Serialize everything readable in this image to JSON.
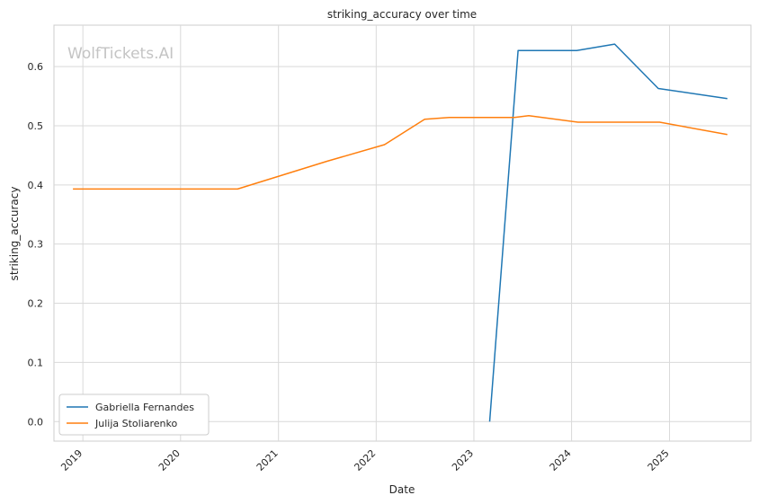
{
  "chart_data": {
    "type": "line",
    "title": "striking_accuracy over time",
    "xlabel": "Date",
    "ylabel": "striking_accuracy",
    "watermark": "WolfTickets.AI",
    "x_ticks": [
      "2019",
      "2020",
      "2021",
      "2022",
      "2023",
      "2024",
      "2025"
    ],
    "y_ticks": [
      "0.0",
      "0.1",
      "0.2",
      "0.3",
      "0.4",
      "0.5",
      "0.6"
    ],
    "xlim": [
      "2018-09-15",
      "2025-11-01"
    ],
    "ylim": [
      -0.033,
      0.67
    ],
    "grid": true,
    "legend_position": "lower-left",
    "series": [
      {
        "name": "Gabriella Fernandes",
        "color": "#1f77b4",
        "points": [
          [
            "2023-03-01",
            0.0
          ],
          [
            "2023-06-15",
            0.627
          ],
          [
            "2024-01-20",
            0.627
          ],
          [
            "2024-06-10",
            0.638
          ],
          [
            "2024-11-20",
            0.563
          ],
          [
            "2025-08-05",
            0.546
          ]
        ]
      },
      {
        "name": "Julija Stoliarenko",
        "color": "#ff7f0e",
        "points": [
          [
            "2018-11-25",
            0.393
          ],
          [
            "2020-08-01",
            0.393
          ],
          [
            "2021-07-01",
            0.44
          ],
          [
            "2022-02-01",
            0.468
          ],
          [
            "2022-07-01",
            0.511
          ],
          [
            "2022-10-01",
            0.514
          ],
          [
            "2023-06-01",
            0.514
          ],
          [
            "2023-07-25",
            0.517
          ],
          [
            "2024-01-25",
            0.506
          ],
          [
            "2024-11-25",
            0.506
          ],
          [
            "2025-08-05",
            0.485
          ]
        ]
      }
    ]
  }
}
